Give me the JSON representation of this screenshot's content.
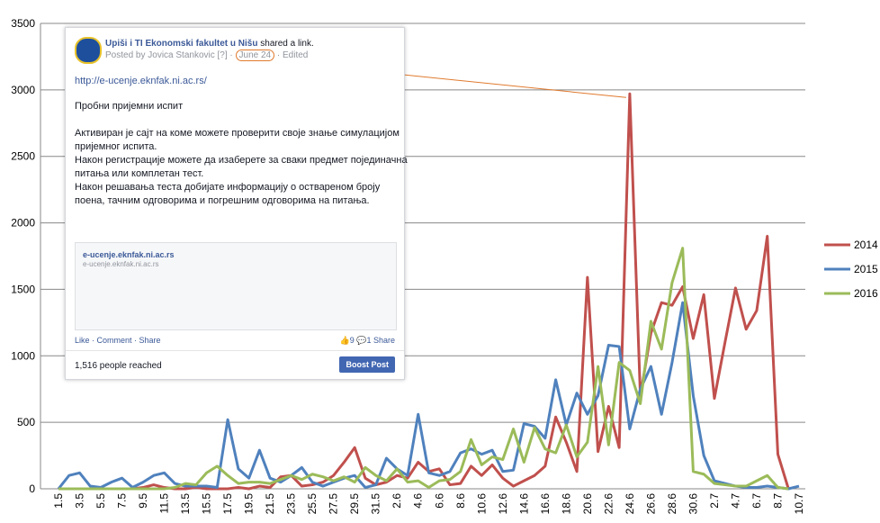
{
  "chart_data": {
    "type": "line",
    "categories": [
      "1.5",
      null,
      "3.5",
      null,
      "5.5",
      null,
      "7.5",
      null,
      "9.5",
      null,
      "11.5",
      null,
      "13.5",
      null,
      "15.5",
      null,
      "17.5",
      null,
      "19.5",
      null,
      "21.5",
      null,
      "23.5",
      null,
      "25.5",
      null,
      "27.5",
      null,
      "29.5",
      null,
      "31.5",
      null,
      "2.6",
      null,
      "4.6",
      null,
      "6.6",
      null,
      "8.6",
      null,
      "10.6",
      null,
      "12.6",
      null,
      "14.6",
      null,
      "16.6",
      null,
      "18.6",
      null,
      "20.6",
      null,
      "22.6",
      null,
      "24.6",
      null,
      "26.6",
      null,
      "28.6",
      null,
      "30.6",
      null,
      "2.7",
      null,
      "4.7",
      null,
      "6.7",
      null,
      "8.7",
      null,
      "10.7"
    ],
    "series": [
      {
        "name": "2014",
        "color": "#c0504d",
        "values": [
          0,
          0,
          0,
          0,
          0,
          0,
          0,
          0,
          10,
          30,
          10,
          0,
          0,
          10,
          0,
          0,
          0,
          10,
          0,
          20,
          10,
          90,
          100,
          20,
          30,
          50,
          100,
          200,
          310,
          80,
          30,
          50,
          100,
          80,
          200,
          130,
          150,
          30,
          40,
          170,
          100,
          180,
          80,
          20,
          60,
          100,
          170,
          540,
          350,
          130,
          1590,
          280,
          620,
          310,
          2970,
          700,
          1170,
          1400,
          1380,
          1520,
          1130,
          1460,
          680,
          1100,
          1510,
          1200,
          1340,
          1900,
          260,
          0,
          null
        ]
      },
      {
        "name": "2015",
        "color": "#4f81bd",
        "values": [
          0,
          100,
          120,
          20,
          10,
          50,
          80,
          10,
          50,
          100,
          120,
          40,
          20,
          20,
          20,
          10,
          520,
          150,
          80,
          290,
          80,
          50,
          100,
          160,
          50,
          20,
          50,
          80,
          100,
          10,
          30,
          230,
          150,
          100,
          560,
          120,
          100,
          130,
          270,
          300,
          260,
          290,
          130,
          140,
          490,
          470,
          380,
          820,
          480,
          720,
          560,
          700,
          1080,
          1070,
          450,
          750,
          920,
          560,
          950,
          1400,
          700,
          250,
          60,
          40,
          20,
          10,
          10,
          20,
          10,
          0,
          20
        ]
      },
      {
        "name": "2016",
        "color": "#9bbb59",
        "values": [
          0,
          0,
          0,
          0,
          0,
          0,
          0,
          0,
          0,
          0,
          0,
          10,
          40,
          30,
          120,
          170,
          100,
          40,
          50,
          50,
          40,
          70,
          100,
          70,
          110,
          90,
          60,
          90,
          50,
          160,
          100,
          60,
          150,
          50,
          60,
          10,
          60,
          70,
          130,
          370,
          180,
          240,
          220,
          450,
          200,
          460,
          300,
          270,
          480,
          240,
          350,
          920,
          330,
          950,
          890,
          640,
          1260,
          1050,
          1550,
          1810,
          130,
          110,
          40,
          30,
          20,
          20,
          60,
          100,
          10,
          0,
          null
        ]
      }
    ],
    "ylim": [
      0,
      3500
    ],
    "yticks": [
      0,
      500,
      1000,
      1500,
      2000,
      2500,
      3000,
      3500
    ],
    "grid": true,
    "legend": "right"
  },
  "overlay": {
    "page": "Upiši i TI Ekonomski fakultet u Nišu",
    "action": "shared a link.",
    "posted_by": "Posted by Jovica Stankovic [?]",
    "date": "June 24",
    "edited": "Edited",
    "link": "http://e-ucenje.eknfak.ni.ac.rs/",
    "paragraphs": [
      "Пробни пријемни испит",
      "Активиран је сајт на коме можете проверити своје знање симулацијом",
      "пријемног испита.",
      "Након регистрације можете да изаберете за сваки предмет појединачна",
      "питања или комплетан тест.",
      "Након решавања теста добијате информацију о оствареном броју",
      "поена, тачним одговорима и погрешним одговорима на питања."
    ],
    "card_title": "e-ucenje.eknfak.ni.ac.rs",
    "card_url": "e-ucenje.eknfak.ni.ac.rs",
    "actions": "Like · Comment · Share",
    "counts": "👍9  💬1 Share",
    "reach": "1,516 people reached",
    "boost": "Boost Post"
  }
}
